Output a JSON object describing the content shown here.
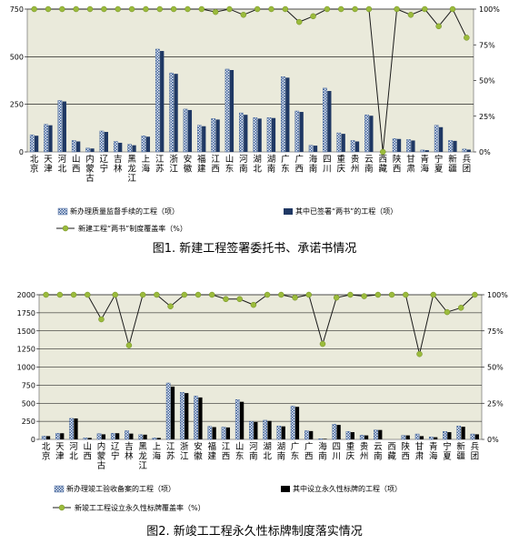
{
  "chart_data": [
    {
      "type": "bar",
      "provinces": [
        "北京",
        "天津",
        "河北",
        "山西",
        "内蒙古",
        "辽宁",
        "吉林",
        "黑龙江",
        "上海",
        "江苏",
        "浙江",
        "安徽",
        "福建",
        "江西",
        "山东",
        "河南",
        "湖北",
        "湖南",
        "广东",
        "广西",
        "海南",
        "四川",
        "重庆",
        "贵州",
        "云南",
        "西藏",
        "陕西",
        "甘肃",
        "青海",
        "宁夏",
        "新疆",
        "兵团"
      ],
      "series": [
        {
          "name": "新办理质量监督手续的工程（项）",
          "values": [
            90,
            145,
            270,
            60,
            20,
            110,
            55,
            40,
            85,
            540,
            415,
            225,
            140,
            175,
            435,
            205,
            180,
            180,
            395,
            215,
            35,
            335,
            100,
            60,
            195,
            0,
            70,
            65,
            10,
            140,
            60,
            15
          ]
        },
        {
          "name": "其中已签署“两书”的工程（项）",
          "values": [
            85,
            140,
            265,
            55,
            18,
            105,
            48,
            35,
            80,
            530,
            410,
            220,
            135,
            170,
            430,
            195,
            175,
            178,
            390,
            210,
            33,
            320,
            95,
            55,
            190,
            0,
            68,
            60,
            9,
            130,
            58,
            12
          ]
        },
        {
          "name": "新建工程“两书”制度覆盖率（%）",
          "values": [
            100,
            100,
            100,
            100,
            100,
            100,
            100,
            100,
            100,
            100,
            100,
            100,
            100,
            98,
            100,
            96,
            100,
            100,
            100,
            91,
            95,
            100,
            100,
            100,
            100,
            0,
            100,
            96,
            100,
            88,
            100,
            80
          ]
        }
      ],
      "y_left_ticks": [
        "0",
        "250",
        "500",
        "750"
      ],
      "y_right_ticks": [
        "0%",
        "25%",
        "50%",
        "75%",
        "100%"
      ],
      "ylim_left": [
        0,
        750
      ],
      "ylim_right": [
        0,
        100
      ],
      "caption": "图1. 新建工程签署委托书、承诺书情况"
    },
    {
      "type": "bar",
      "provinces": [
        "北京",
        "天津",
        "河北",
        "山西",
        "内蒙古",
        "辽宁",
        "吉林",
        "黑龙江",
        "上海",
        "江苏",
        "浙江",
        "安徽",
        "福建",
        "江西",
        "山东",
        "河南",
        "湖北",
        "湖南",
        "广东",
        "广西",
        "海南",
        "四川",
        "重庆",
        "贵州",
        "云南",
        "西藏",
        "陕西",
        "甘肃",
        "青海",
        "宁夏",
        "新疆",
        "兵团"
      ],
      "series": [
        {
          "name": "新办理竣工验收备案的工程（项）",
          "values": [
            45,
            85,
            290,
            20,
            80,
            85,
            120,
            65,
            20,
            780,
            650,
            600,
            180,
            170,
            550,
            250,
            265,
            185,
            460,
            120,
            10,
            210,
            110,
            60,
            130,
            0,
            55,
            75,
            35,
            110,
            185,
            75
          ]
        },
        {
          "name": "其中设立永久性标牌的工程（项）",
          "values": [
            45,
            85,
            290,
            20,
            70,
            85,
            80,
            65,
            20,
            730,
            640,
            580,
            170,
            165,
            520,
            240,
            255,
            180,
            450,
            115,
            8,
            200,
            100,
            55,
            130,
            0,
            55,
            45,
            30,
            100,
            175,
            70
          ]
        },
        {
          "name": "新竣工工程设立永久性标牌覆盖率（%）",
          "values": [
            100,
            100,
            100,
            100,
            83,
            100,
            65,
            100,
            100,
            92,
            100,
            100,
            100,
            97,
            97,
            93,
            100,
            100,
            98,
            100,
            66,
            98,
            100,
            99,
            100,
            100,
            100,
            59,
            100,
            88,
            91,
            100
          ]
        }
      ],
      "y_left_ticks": [
        "0",
        "250",
        "500",
        "750",
        "1000",
        "1250",
        "1500",
        "1750",
        "2000"
      ],
      "y_right_ticks": [
        "0%",
        "25%",
        "50%",
        "75%",
        "100%"
      ],
      "ylim_left": [
        0,
        2000
      ],
      "ylim_right": [
        0,
        100
      ],
      "caption": "图2. 新竣工工程永久性标牌制度落实情况"
    }
  ]
}
